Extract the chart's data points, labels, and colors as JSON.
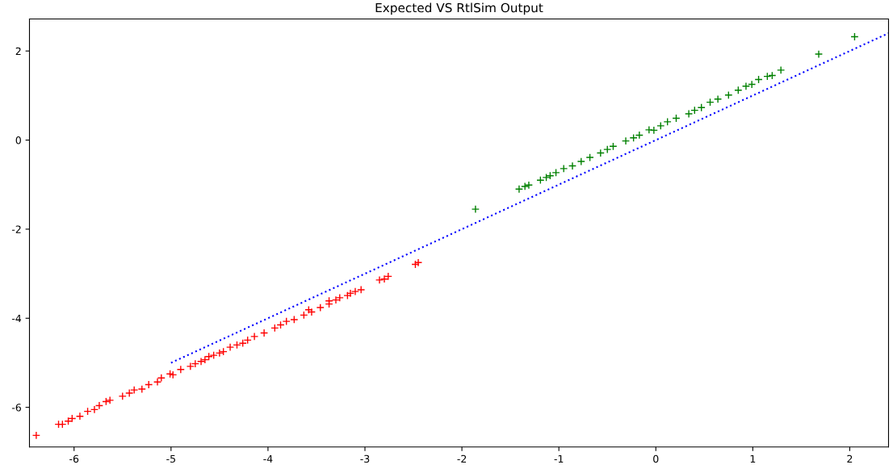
{
  "chart_data": {
    "type": "scatter",
    "title": "Expected VS RtlSim Output",
    "xlim": [
      -6.46,
      2.4
    ],
    "ylim": [
      -6.89,
      2.72
    ],
    "xticks": [
      -6,
      -5,
      -4,
      -3,
      -2,
      -1,
      0,
      1,
      2
    ],
    "yticks": [
      -6,
      -4,
      -2,
      0,
      2
    ],
    "grid": false,
    "legend": false,
    "marker": "cross",
    "series": [
      {
        "color": "#ff0000",
        "x": [
          -6.39,
          -6.16,
          -6.12,
          -6.06,
          -6.02,
          -5.94,
          -5.86,
          -5.79,
          -5.74,
          -5.67,
          -5.63,
          -5.5,
          -5.43,
          -5.38,
          -5.3,
          -5.23,
          -5.14,
          -5.1,
          -5.01,
          -4.98,
          -4.9,
          -4.8,
          -4.75,
          -4.69,
          -4.65,
          -4.61,
          -4.56,
          -4.5,
          -4.46,
          -4.39,
          -4.32,
          -4.26,
          -4.21,
          -4.14,
          -4.04,
          -3.93,
          -3.87,
          -3.81,
          -3.73,
          -3.63,
          -3.58,
          -3.55,
          -3.46,
          -3.37,
          -3.37,
          -3.3,
          -3.26,
          -3.18,
          -3.15,
          -3.1,
          -3.04,
          -2.85,
          -2.8,
          -2.76,
          -2.48,
          -2.45
        ],
        "values": [
          -6.63,
          -6.38,
          -6.38,
          -6.31,
          -6.25,
          -6.2,
          -6.09,
          -6.05,
          -5.96,
          -5.87,
          -5.84,
          -5.75,
          -5.68,
          -5.61,
          -5.59,
          -5.49,
          -5.43,
          -5.34,
          -5.25,
          -5.27,
          -5.15,
          -5.08,
          -5.02,
          -4.97,
          -4.93,
          -4.86,
          -4.83,
          -4.78,
          -4.75,
          -4.65,
          -4.6,
          -4.56,
          -4.49,
          -4.41,
          -4.33,
          -4.22,
          -4.15,
          -4.07,
          -4.03,
          -3.93,
          -3.81,
          -3.86,
          -3.76,
          -3.61,
          -3.68,
          -3.59,
          -3.54,
          -3.49,
          -3.44,
          -3.4,
          -3.36,
          -3.14,
          -3.12,
          -3.06,
          -2.79,
          -2.75
        ]
      },
      {
        "color": "#008000",
        "x": [
          -1.86,
          -1.41,
          -1.35,
          -1.31,
          -1.19,
          -1.13,
          -1.09,
          -1.03,
          -0.95,
          -0.86,
          -0.77,
          -0.68,
          -0.57,
          -0.5,
          -0.44,
          -0.31,
          -0.23,
          -0.17,
          -0.07,
          -0.02,
          0.05,
          0.12,
          0.21,
          0.34,
          0.4,
          0.47,
          0.56,
          0.64,
          0.75,
          0.85,
          0.93,
          0.99,
          1.06,
          1.15,
          1.2,
          1.29,
          1.68,
          2.05
        ],
        "values": [
          -1.55,
          -1.1,
          -1.04,
          -1.01,
          -0.9,
          -0.84,
          -0.8,
          -0.73,
          -0.64,
          -0.58,
          -0.48,
          -0.39,
          -0.29,
          -0.21,
          -0.14,
          -0.02,
          0.05,
          0.11,
          0.23,
          0.22,
          0.32,
          0.41,
          0.49,
          0.59,
          0.67,
          0.73,
          0.85,
          0.92,
          1.01,
          1.12,
          1.21,
          1.25,
          1.36,
          1.43,
          1.45,
          1.57,
          1.93,
          2.32
        ]
      },
      {
        "type": "line",
        "color": "#0000ff",
        "line_style": "dotted",
        "marker": "none",
        "x": [
          -5,
          2.4
        ],
        "values": [
          -5,
          2.4
        ]
      }
    ]
  }
}
